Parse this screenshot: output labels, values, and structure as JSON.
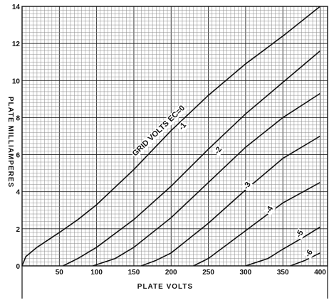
{
  "chart_data": {
    "type": "line",
    "xlabel": "PLATE VOLTS",
    "ylabel": "PLATE MILLIAMPERES",
    "xlim": [
      0,
      410
    ],
    "ylim": [
      0,
      14
    ],
    "x_ticks": [
      "0",
      "50",
      "100",
      "150",
      "200",
      "250",
      "300",
      "350",
      "400"
    ],
    "y_ticks": [
      "0",
      "2",
      "4",
      "6",
      "8",
      "10",
      "12",
      "14"
    ],
    "grid": true,
    "series": [
      {
        "name": "GRID VOLTS EC=0",
        "points": [
          [
            0,
            0
          ],
          [
            5,
            0.5
          ],
          [
            20,
            1.0
          ],
          [
            50,
            1.8
          ],
          [
            75,
            2.5
          ],
          [
            100,
            3.3
          ],
          [
            150,
            5.2
          ],
          [
            200,
            7.3
          ],
          [
            250,
            9.2
          ],
          [
            300,
            10.9
          ],
          [
            350,
            12.4
          ],
          [
            400,
            14.0
          ]
        ]
      },
      {
        "name": "-1",
        "points": [
          [
            55,
            0
          ],
          [
            75,
            0.4
          ],
          [
            100,
            1.0
          ],
          [
            150,
            2.5
          ],
          [
            200,
            4.3
          ],
          [
            250,
            6.3
          ],
          [
            300,
            8.2
          ],
          [
            350,
            9.9
          ],
          [
            400,
            11.6
          ]
        ]
      },
      {
        "name": "-2",
        "points": [
          [
            95,
            0
          ],
          [
            125,
            0.4
          ],
          [
            150,
            1.0
          ],
          [
            200,
            2.6
          ],
          [
            250,
            4.5
          ],
          [
            300,
            6.4
          ],
          [
            350,
            8.0
          ],
          [
            400,
            9.3
          ]
        ]
      },
      {
        "name": "-3",
        "points": [
          [
            160,
            0
          ],
          [
            180,
            0.3
          ],
          [
            200,
            0.7
          ],
          [
            250,
            2.3
          ],
          [
            300,
            4.1
          ],
          [
            350,
            5.8
          ],
          [
            400,
            7.0
          ]
        ]
      },
      {
        "name": "-4",
        "points": [
          [
            230,
            0
          ],
          [
            250,
            0.4
          ],
          [
            300,
            1.9
          ],
          [
            350,
            3.4
          ],
          [
            400,
            4.5
          ]
        ]
      },
      {
        "name": "-5",
        "points": [
          [
            300,
            0
          ],
          [
            330,
            0.4
          ],
          [
            350,
            0.9
          ],
          [
            380,
            1.6
          ],
          [
            400,
            2.1
          ]
        ]
      },
      {
        "name": "-6",
        "points": [
          [
            360,
            0
          ],
          [
            380,
            0.3
          ],
          [
            400,
            0.7
          ]
        ]
      }
    ]
  }
}
